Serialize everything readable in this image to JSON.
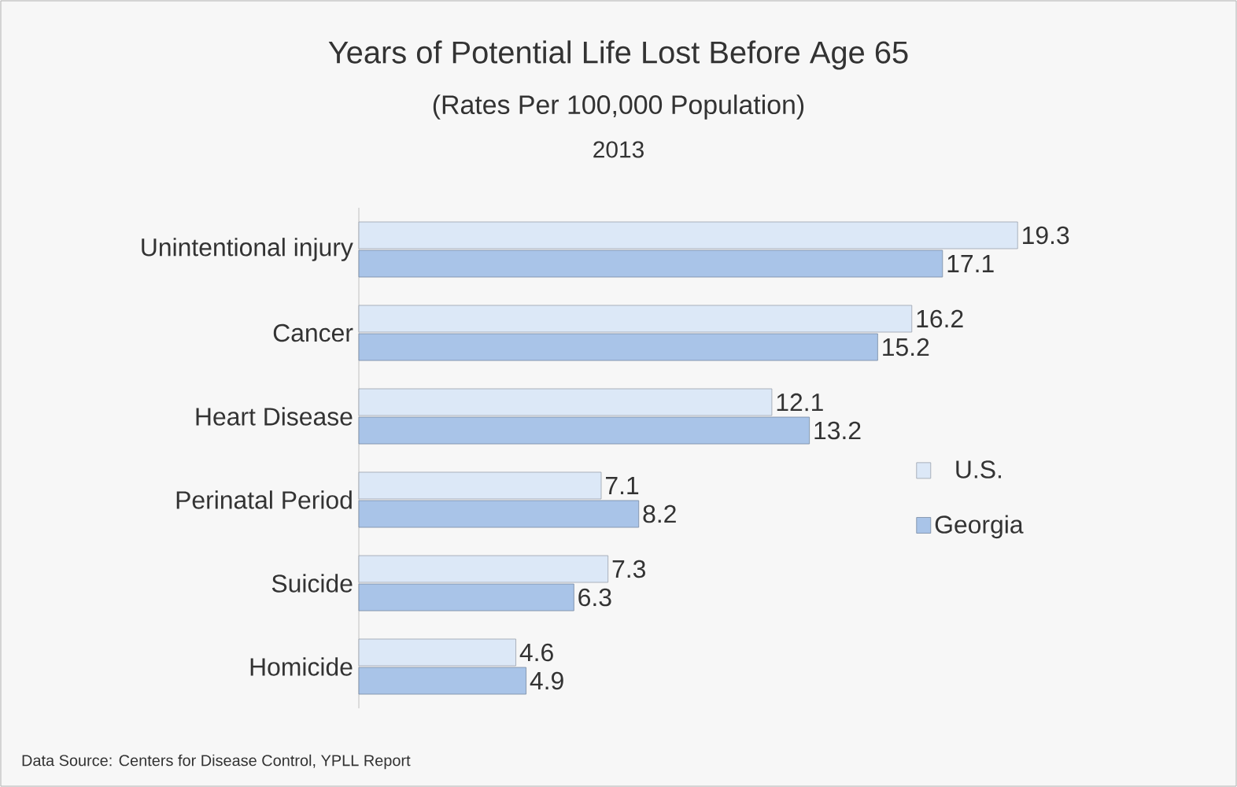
{
  "chart_data": {
    "type": "bar",
    "orientation": "horizontal",
    "title": "Years of Potential Life Lost Before Age 65",
    "subtitle": "(Rates Per 100,000 Population)",
    "annotations": [
      "2013",
      "Data Source:  Centers for Disease Control, YPLL Report"
    ],
    "categories": [
      "Unintentional injury",
      "Cancer",
      "Heart Disease",
      "Perinatal Period",
      "Suicide",
      "Homicide"
    ],
    "series": [
      {
        "name": "U.S.",
        "color": "#dce8f7",
        "values": [
          19.3,
          16.2,
          12.1,
          7.1,
          7.3,
          4.6
        ]
      },
      {
        "name": "Georgia",
        "color": "#a9c4e8",
        "values": [
          17.1,
          15.2,
          13.2,
          8.2,
          6.3,
          4.9
        ]
      }
    ],
    "data_labels": true,
    "legend": "right"
  }
}
